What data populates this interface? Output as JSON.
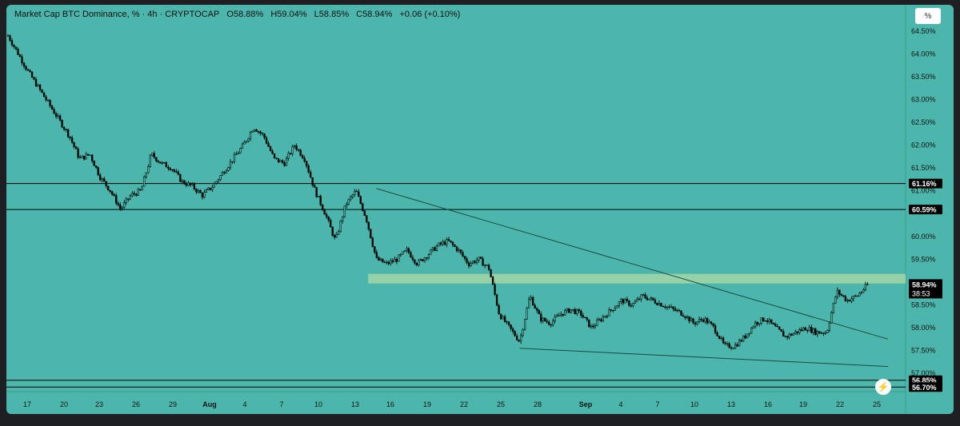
{
  "header": {
    "symbol": "Market Cap BTC Dominance, % · 4h · CRYPTOCAP",
    "open": "O58.88%",
    "high": "H59.04%",
    "low": "L58.85%",
    "close": "C58.94%",
    "change": "+0.06 (+0.10%)"
  },
  "scale_button": "%",
  "colors": {
    "background": "#4db6ac",
    "candle": "#000000",
    "zone": "#a5d6a7",
    "tag_bg": "#000000",
    "alert": "#d81b60"
  },
  "chart_data": {
    "type": "candlestick",
    "ylim": [
      56.6,
      64.9
    ],
    "y_ticks": [
      "64.50%",
      "64.00%",
      "63.50%",
      "63.00%",
      "62.50%",
      "62.00%",
      "61.50%",
      "61.00%",
      "60.00%",
      "59.50%",
      "58.50%",
      "58.00%",
      "57.50%",
      "57.00%"
    ],
    "x_labels": [
      "17",
      "20",
      "23",
      "26",
      "29",
      "Aug",
      "4",
      "7",
      "10",
      "13",
      "16",
      "19",
      "22",
      "25",
      "28",
      "Sep",
      "4",
      "7",
      "10",
      "13",
      "16",
      "19",
      "22",
      "25"
    ],
    "price_path": [
      [
        0,
        64.4
      ],
      [
        2,
        63.6
      ],
      [
        4,
        62.9
      ],
      [
        6,
        62.2
      ],
      [
        7,
        61.7
      ],
      [
        8,
        61.8
      ],
      [
        9,
        61.3
      ],
      [
        10,
        61.0
      ],
      [
        11,
        60.6
      ],
      [
        12,
        60.9
      ],
      [
        13,
        61.0
      ],
      [
        14,
        61.8
      ],
      [
        15,
        61.6
      ],
      [
        16,
        61.5
      ],
      [
        17,
        61.2
      ],
      [
        18,
        61.1
      ],
      [
        19,
        60.9
      ],
      [
        20,
        61.1
      ],
      [
        21,
        61.4
      ],
      [
        22,
        61.7
      ],
      [
        23,
        62.0
      ],
      [
        24,
        62.4
      ],
      [
        25,
        62.2
      ],
      [
        26,
        61.7
      ],
      [
        27,
        61.6
      ],
      [
        28,
        62.0
      ],
      [
        29,
        61.7
      ],
      [
        30,
        61.0
      ],
      [
        31,
        60.5
      ],
      [
        32,
        59.9
      ],
      [
        33,
        60.7
      ],
      [
        34,
        61.0
      ],
      [
        35,
        60.4
      ],
      [
        36,
        59.5
      ],
      [
        37,
        59.4
      ],
      [
        38,
        59.5
      ],
      [
        39,
        59.7
      ],
      [
        40,
        59.4
      ],
      [
        41,
        59.6
      ],
      [
        42,
        59.8
      ],
      [
        43,
        59.9
      ],
      [
        44,
        59.7
      ],
      [
        45,
        59.4
      ],
      [
        46,
        59.5
      ],
      [
        47,
        59.3
      ],
      [
        48,
        58.3
      ],
      [
        49,
        58.0
      ],
      [
        50,
        57.7
      ],
      [
        51,
        58.7
      ],
      [
        52,
        58.2
      ],
      [
        53,
        58.1
      ],
      [
        54,
        58.3
      ],
      [
        55,
        58.4
      ],
      [
        56,
        58.3
      ],
      [
        57,
        58.0
      ],
      [
        58,
        58.2
      ],
      [
        59,
        58.4
      ],
      [
        60,
        58.6
      ],
      [
        61,
        58.5
      ],
      [
        62,
        58.7
      ],
      [
        63,
        58.6
      ],
      [
        64,
        58.5
      ],
      [
        65,
        58.4
      ],
      [
        66,
        58.3
      ],
      [
        67,
        58.1
      ],
      [
        68,
        58.2
      ],
      [
        69,
        58.0
      ],
      [
        70,
        57.6
      ],
      [
        71,
        57.6
      ],
      [
        72,
        57.8
      ],
      [
        73,
        58.1
      ],
      [
        74,
        58.2
      ],
      [
        75,
        58.0
      ],
      [
        76,
        57.8
      ],
      [
        77,
        57.9
      ],
      [
        78,
        58.0
      ],
      [
        79,
        57.9
      ],
      [
        80,
        57.9
      ],
      [
        81,
        58.8
      ],
      [
        82,
        58.6
      ],
      [
        83,
        58.7
      ],
      [
        84,
        58.94
      ]
    ],
    "horizontal_levels": [
      {
        "value": 61.16,
        "label": "61.16%"
      },
      {
        "value": 60.59,
        "label": "60.59%"
      },
      {
        "value": 56.85,
        "label": "56.85%"
      },
      {
        "value": 56.7,
        "label": "56.70%"
      }
    ],
    "current_price": {
      "label": "58.94%",
      "value": 58.94,
      "countdown": "38:53"
    },
    "support_zone": [
      58.97,
      59.18
    ],
    "trendlines": [
      {
        "from": [
          36,
          61.05
        ],
        "to": [
          86,
          57.75
        ]
      },
      {
        "from": [
          50,
          57.55
        ],
        "to": [
          86,
          57.15
        ]
      }
    ]
  }
}
